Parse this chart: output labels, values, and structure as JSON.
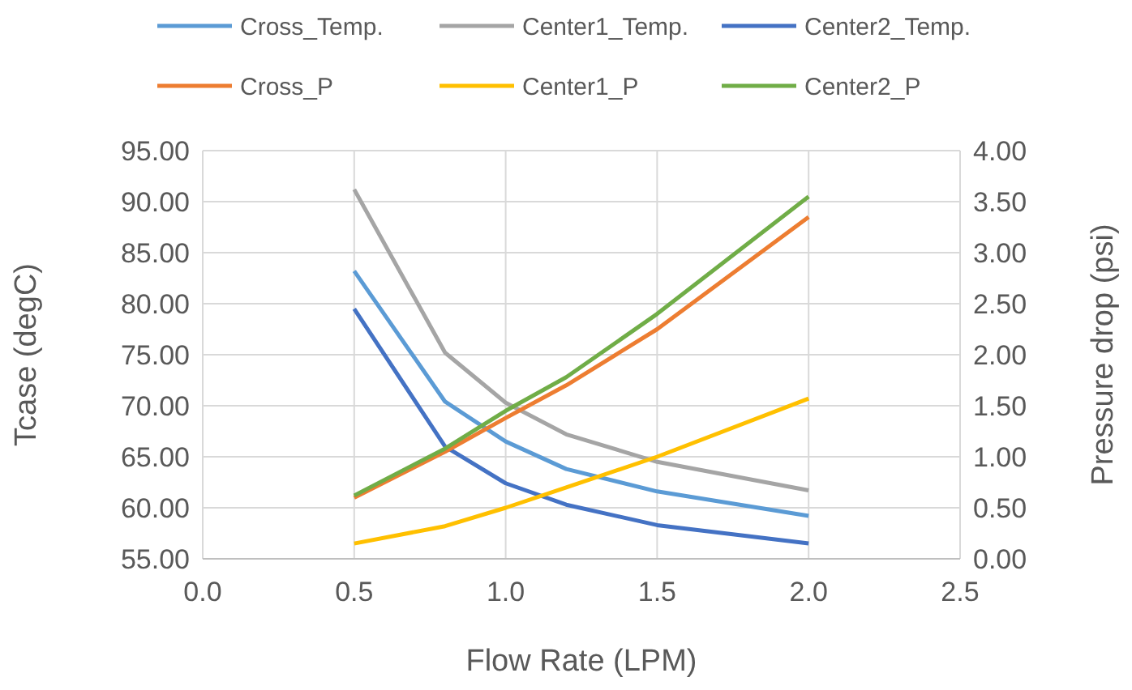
{
  "chart_data": {
    "type": "line",
    "xlabel": "Flow Rate (LPM)",
    "ylabel": "Tcase (degC)",
    "y2label": "Pressure drop (psi)",
    "x": [
      0.5,
      0.8,
      1.0,
      1.2,
      1.5,
      2.0
    ],
    "xlim": [
      0,
      2.5
    ],
    "xticks": [
      {
        "value": 0,
        "label": "0.0"
      },
      {
        "value": 0.5,
        "label": "0.5"
      },
      {
        "value": 1,
        "label": "1.0"
      },
      {
        "value": 1.5,
        "label": "1.5"
      },
      {
        "value": 2,
        "label": "2.0"
      },
      {
        "value": 2.5,
        "label": "2.5"
      }
    ],
    "ylim": [
      55,
      95
    ],
    "yticks": [
      {
        "value": 55,
        "label": "55.00"
      },
      {
        "value": 60,
        "label": "60.00"
      },
      {
        "value": 65,
        "label": "65.00"
      },
      {
        "value": 70,
        "label": "70.00"
      },
      {
        "value": 75,
        "label": "75.00"
      },
      {
        "value": 80,
        "label": "80.00"
      },
      {
        "value": 85,
        "label": "85.00"
      },
      {
        "value": 90,
        "label": "90.00"
      },
      {
        "value": 95,
        "label": "95.00"
      }
    ],
    "y2lim": [
      0,
      4
    ],
    "y2ticks": [
      {
        "value": 0,
        "label": "0.00"
      },
      {
        "value": 0.5,
        "label": "0.50"
      },
      {
        "value": 1,
        "label": "1.00"
      },
      {
        "value": 1.5,
        "label": "1.50"
      },
      {
        "value": 2,
        "label": "2.00"
      },
      {
        "value": 2.5,
        "label": "2.50"
      },
      {
        "value": 3,
        "label": "3.00"
      },
      {
        "value": 3.5,
        "label": "3.50"
      },
      {
        "value": 4,
        "label": "4.00"
      }
    ],
    "grid": true,
    "legend": "top",
    "marker": "none",
    "line_style": "solid",
    "series": [
      {
        "name": "Cross_Temp.",
        "color": "#5b9bd5",
        "values": [
          83.2,
          70.4,
          66.5,
          63.8,
          61.6,
          59.2
        ]
      },
      {
        "name": "Center1_Temp.",
        "color": "#a5a5a5",
        "values": [
          91.2,
          75.2,
          70.3,
          67.2,
          64.5,
          61.7
        ]
      },
      {
        "name": "Center2_Temp.",
        "color": "#4472c4",
        "values": [
          79.5,
          66.0,
          62.4,
          60.3,
          58.3,
          56.5
        ]
      },
      {
        "name": "Cross_P",
        "color": "#ed7d31",
        "axis": "y2",
        "values": [
          0.6,
          1.05,
          1.38,
          1.7,
          2.25,
          3.35
        ]
      },
      {
        "name": "Center1_P",
        "color": "#ffc000",
        "axis": "y2",
        "values": [
          0.15,
          0.32,
          0.5,
          0.7,
          1.0,
          1.57
        ]
      },
      {
        "name": "Center2_P",
        "color": "#70ad47",
        "axis": "y2",
        "values": [
          0.62,
          1.08,
          1.45,
          1.78,
          2.4,
          3.55
        ]
      }
    ]
  }
}
